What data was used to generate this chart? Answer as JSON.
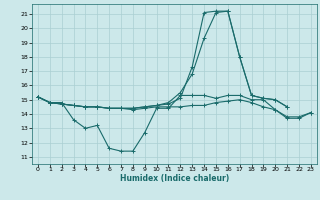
{
  "xlabel": "Humidex (Indice chaleur)",
  "bg_color": "#cce8ea",
  "grid_color": "#aacfd2",
  "line_color": "#1a6b6b",
  "xlim": [
    -0.5,
    23.5
  ],
  "ylim": [
    10.5,
    21.7
  ],
  "yticks": [
    11,
    12,
    13,
    14,
    15,
    16,
    17,
    18,
    19,
    20,
    21
  ],
  "xticks": [
    0,
    1,
    2,
    3,
    4,
    5,
    6,
    7,
    8,
    9,
    10,
    11,
    12,
    13,
    14,
    15,
    16,
    17,
    18,
    19,
    20,
    21,
    22,
    23
  ],
  "series": [
    [
      15.2,
      14.8,
      14.8,
      13.6,
      13.0,
      13.2,
      11.6,
      11.4,
      11.4,
      12.7,
      14.4,
      14.4,
      15.3,
      15.3,
      15.3,
      15.1,
      15.3,
      15.3,
      15.0,
      15.0,
      14.3,
      13.8,
      13.8,
      14.1
    ],
    [
      15.2,
      14.8,
      14.7,
      14.6,
      14.5,
      14.5,
      14.4,
      14.4,
      14.4,
      14.5,
      14.6,
      14.8,
      15.5,
      16.8,
      19.3,
      21.1,
      21.2,
      18.0,
      15.3,
      15.1,
      15.0,
      14.5,
      null,
      null
    ],
    [
      15.2,
      14.8,
      14.7,
      14.6,
      14.5,
      14.5,
      14.4,
      14.4,
      14.4,
      14.5,
      14.6,
      14.7,
      15.1,
      17.3,
      21.1,
      21.2,
      21.2,
      18.0,
      15.3,
      15.1,
      15.0,
      14.5,
      null,
      null
    ],
    [
      15.2,
      14.8,
      14.7,
      14.6,
      14.5,
      14.5,
      14.4,
      14.4,
      14.3,
      14.4,
      14.5,
      14.5,
      14.5,
      14.6,
      14.6,
      14.8,
      14.9,
      15.0,
      14.8,
      14.5,
      14.3,
      13.7,
      13.7,
      14.1
    ]
  ]
}
